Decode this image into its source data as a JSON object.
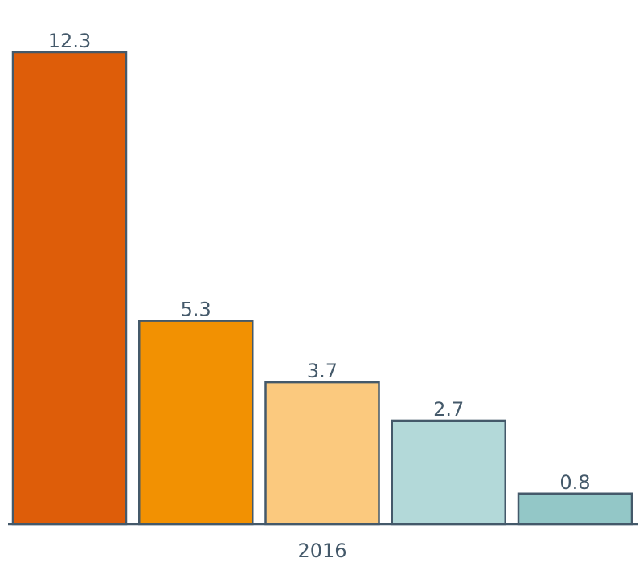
{
  "chart_data": {
    "type": "bar",
    "title": "",
    "xlabel": "",
    "ylabel": "",
    "categories": [
      "2016"
    ],
    "series": [
      {
        "name": "",
        "values": [
          12.3
        ],
        "color": "#de5d09"
      },
      {
        "name": "",
        "values": [
          5.3
        ],
        "color": "#f29102"
      },
      {
        "name": "",
        "values": [
          3.7
        ],
        "color": "#fbc97e"
      },
      {
        "name": "",
        "values": [
          2.7
        ],
        "color": "#b3d9d9"
      },
      {
        "name": "",
        "values": [
          0.8
        ],
        "color": "#93c7c7"
      }
    ],
    "value_labels": [
      "12.3",
      "5.3",
      "3.7",
      "2.7",
      "0.8"
    ],
    "ylim": [
      0,
      12.3
    ],
    "grid": false,
    "legend": "none"
  }
}
